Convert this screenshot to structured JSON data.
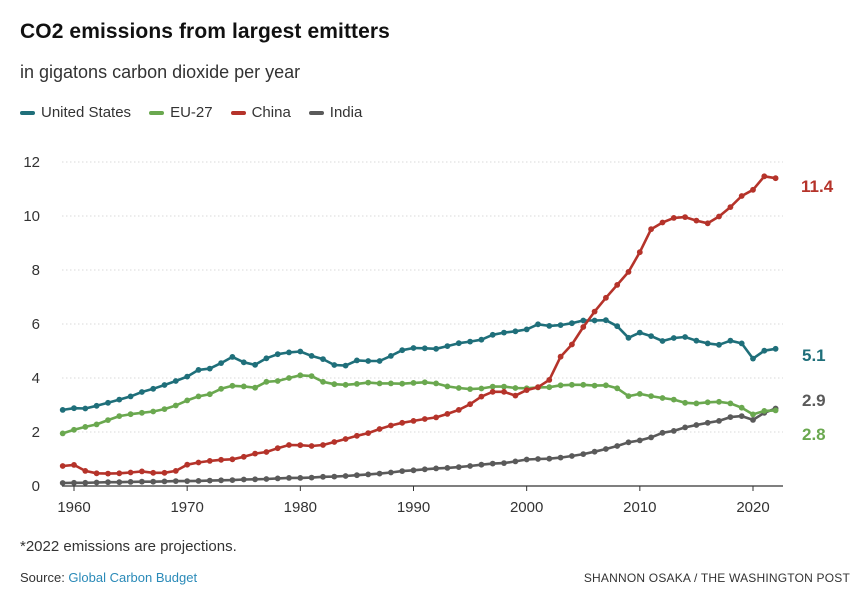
{
  "header": {
    "title": "CO2 emissions from largest emitters",
    "subtitle": "in gigatons carbon dioxide per year"
  },
  "legend": [
    {
      "name": "United States",
      "color": "#1f6f7a"
    },
    {
      "name": "EU-27",
      "color": "#6aa84f"
    },
    {
      "name": "China",
      "color": "#b5332a"
    },
    {
      "name": "India",
      "color": "#5a5a5a"
    }
  ],
  "end_labels": {
    "china": "11.4",
    "us": "5.1",
    "india": "2.9",
    "eu": "2.8"
  },
  "footer": {
    "footnote": "*2022 emissions are projections.",
    "source_prefix": "Source: ",
    "source_link": "Global Carbon Budget",
    "credit": "SHANNON OSAKA / THE WASHINGTON POST"
  },
  "chart_data": {
    "type": "line",
    "title": "CO2 emissions from largest emitters",
    "subtitle": "in gigatons carbon dioxide per year",
    "xlabel": "",
    "ylabel": "",
    "xlim": [
      1959,
      2022
    ],
    "ylim": [
      0,
      12
    ],
    "x_ticks": [
      1960,
      1970,
      1980,
      1990,
      2000,
      2010,
      2020
    ],
    "y_ticks": [
      0,
      2,
      4,
      6,
      8,
      10,
      12
    ],
    "grid": "horizontal",
    "legend_position": "top-left",
    "x": [
      1959,
      1960,
      1961,
      1962,
      1963,
      1964,
      1965,
      1966,
      1967,
      1968,
      1969,
      1970,
      1971,
      1972,
      1973,
      1974,
      1975,
      1976,
      1977,
      1978,
      1979,
      1980,
      1981,
      1982,
      1983,
      1984,
      1985,
      1986,
      1987,
      1988,
      1989,
      1990,
      1991,
      1992,
      1993,
      1994,
      1995,
      1996,
      1997,
      1998,
      1999,
      2000,
      2001,
      2002,
      2003,
      2004,
      2005,
      2006,
      2007,
      2008,
      2009,
      2010,
      2011,
      2012,
      2013,
      2014,
      2015,
      2016,
      2017,
      2018,
      2019,
      2020,
      2021,
      2022
    ],
    "series": [
      {
        "name": "United States",
        "color": "#1f6f7a",
        "values": [
          2.82,
          2.88,
          2.87,
          2.97,
          3.08,
          3.2,
          3.32,
          3.48,
          3.6,
          3.74,
          3.89,
          4.05,
          4.3,
          4.35,
          4.55,
          4.78,
          4.58,
          4.49,
          4.73,
          4.88,
          4.95,
          4.98,
          4.82,
          4.7,
          4.48,
          4.46,
          4.65,
          4.63,
          4.63,
          4.82,
          5.03,
          5.11,
          5.1,
          5.08,
          5.18,
          5.29,
          5.35,
          5.42,
          5.6,
          5.68,
          5.73,
          5.8,
          5.99,
          5.93,
          5.96,
          6.03,
          6.13,
          6.13,
          6.14,
          5.92,
          5.49,
          5.68,
          5.55,
          5.37,
          5.48,
          5.52,
          5.38,
          5.28,
          5.23,
          5.38,
          5.28,
          4.72,
          5.01,
          5.08
        ]
      },
      {
        "name": "EU-27",
        "color": "#6aa84f",
        "values": [
          1.95,
          2.08,
          2.19,
          2.28,
          2.44,
          2.59,
          2.66,
          2.71,
          2.76,
          2.85,
          2.98,
          3.17,
          3.32,
          3.4,
          3.6,
          3.71,
          3.69,
          3.64,
          3.86,
          3.89,
          4.0,
          4.1,
          4.07,
          3.86,
          3.77,
          3.75,
          3.78,
          3.83,
          3.8,
          3.8,
          3.79,
          3.82,
          3.84,
          3.8,
          3.69,
          3.63,
          3.59,
          3.61,
          3.68,
          3.68,
          3.63,
          3.62,
          3.65,
          3.66,
          3.73,
          3.75,
          3.75,
          3.72,
          3.73,
          3.62,
          3.33,
          3.41,
          3.33,
          3.26,
          3.2,
          3.08,
          3.06,
          3.1,
          3.12,
          3.06,
          2.9,
          2.65,
          2.78,
          2.8
        ]
      },
      {
        "name": "China",
        "color": "#b5332a",
        "values": [
          0.74,
          0.78,
          0.56,
          0.47,
          0.46,
          0.47,
          0.5,
          0.54,
          0.49,
          0.49,
          0.56,
          0.79,
          0.87,
          0.93,
          0.97,
          0.99,
          1.08,
          1.2,
          1.26,
          1.4,
          1.52,
          1.51,
          1.48,
          1.52,
          1.63,
          1.74,
          1.86,
          1.96,
          2.11,
          2.24,
          2.34,
          2.41,
          2.48,
          2.54,
          2.67,
          2.82,
          3.03,
          3.31,
          3.49,
          3.49,
          3.35,
          3.55,
          3.66,
          3.93,
          4.79,
          5.24,
          5.89,
          6.46,
          6.97,
          7.45,
          7.93,
          8.66,
          9.51,
          9.76,
          9.93,
          9.96,
          9.83,
          9.73,
          9.98,
          10.33,
          10.74,
          10.97,
          11.47,
          11.4
        ]
      },
      {
        "name": "India",
        "color": "#5a5a5a",
        "values": [
          0.11,
          0.12,
          0.12,
          0.13,
          0.14,
          0.14,
          0.15,
          0.16,
          0.16,
          0.17,
          0.18,
          0.18,
          0.19,
          0.2,
          0.21,
          0.22,
          0.24,
          0.25,
          0.26,
          0.28,
          0.3,
          0.3,
          0.31,
          0.34,
          0.35,
          0.37,
          0.4,
          0.43,
          0.46,
          0.5,
          0.55,
          0.58,
          0.62,
          0.65,
          0.67,
          0.7,
          0.74,
          0.79,
          0.83,
          0.85,
          0.91,
          0.98,
          1.0,
          1.01,
          1.05,
          1.11,
          1.18,
          1.27,
          1.37,
          1.48,
          1.62,
          1.69,
          1.8,
          1.97,
          2.04,
          2.17,
          2.26,
          2.34,
          2.41,
          2.55,
          2.59,
          2.45,
          2.71,
          2.87
        ]
      }
    ]
  }
}
